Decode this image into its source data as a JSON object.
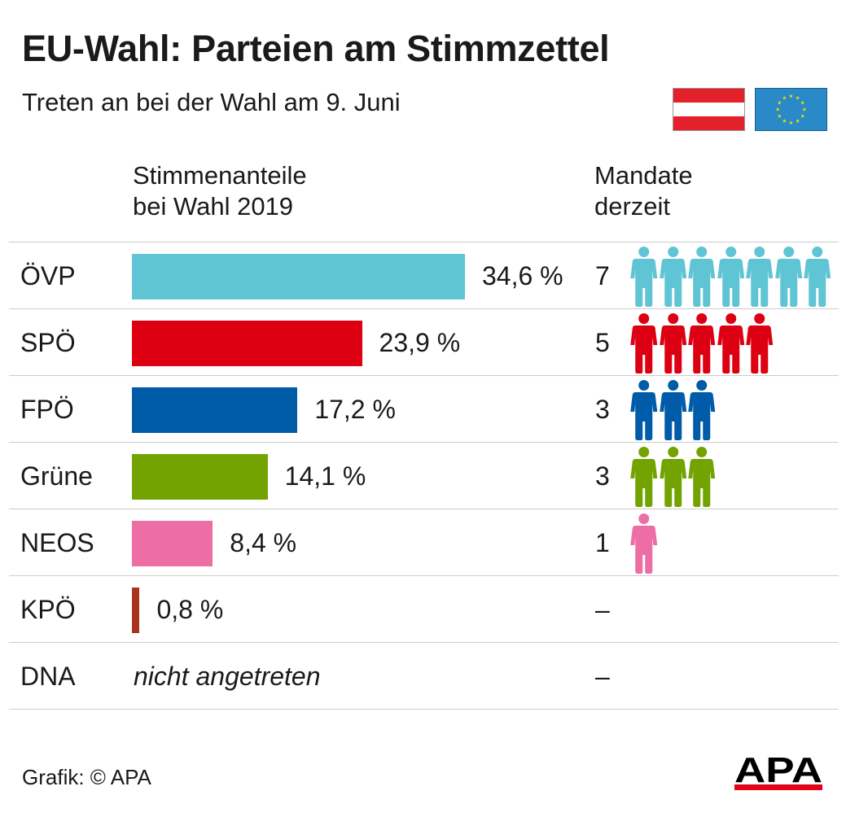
{
  "title": "EU-Wahl: Parteien am Stimmzettel",
  "subtitle": "Treten an bei der Wahl am 9. Juni",
  "headers": {
    "votes_line1": "Stimmenanteile",
    "votes_line2": "bei Wahl 2019",
    "seats_line1": "Mandate",
    "seats_line2": "derzeit"
  },
  "icons": {
    "flag_austria": "austria-flag-icon",
    "flag_eu": "eu-flag-icon",
    "person": "person-icon",
    "logo": "apa-logo"
  },
  "chart_data": {
    "type": "bar",
    "orientation": "horizontal",
    "categories": [
      "ÖVP",
      "SPÖ",
      "FPÖ",
      "Grüne",
      "NEOS",
      "KPÖ",
      "DNA"
    ],
    "series": [
      {
        "values": [
          34.6,
          23.9,
          17.2,
          14.1,
          8.4,
          0.8,
          null
        ]
      },
      {
        "values": [
          7,
          5,
          3,
          3,
          1,
          0,
          0
        ]
      }
    ],
    "rows": [
      {
        "party": "ÖVP",
        "value": 34.6,
        "label": "34,6 %",
        "seats": 7,
        "seats_label": "7",
        "color": "#5fc4d4"
      },
      {
        "party": "SPÖ",
        "value": 23.9,
        "label": "23,9 %",
        "seats": 5,
        "seats_label": "5",
        "color": "#dc0012"
      },
      {
        "party": "FPÖ",
        "value": 17.2,
        "label": "17,2 %",
        "seats": 3,
        "seats_label": "3",
        "color": "#005ba8"
      },
      {
        "party": "Grüne",
        "value": 14.1,
        "label": "14,1 %",
        "seats": 3,
        "seats_label": "3",
        "color": "#72a300"
      },
      {
        "party": "NEOS",
        "value": 8.4,
        "label": "8,4 %",
        "seats": 1,
        "seats_label": "1",
        "color": "#ec6ea4"
      },
      {
        "party": "KPÖ",
        "value": 0.8,
        "label": "0,8 %",
        "seats": 0,
        "seats_label": "–",
        "color": "#a8341e"
      },
      {
        "party": "DNA",
        "value": null,
        "label": "nicht angetreten",
        "seats": 0,
        "seats_label": "–",
        "color": "#000000"
      }
    ],
    "xlim": [
      0,
      34.6
    ],
    "grid": false,
    "legend": "none"
  },
  "footer": {
    "credit": "Grafik: © APA",
    "logo_text": "APA"
  },
  "colors": {
    "austria_red": "#e4212a",
    "eu_blue": "#2a8ac8",
    "eu_star": "#f5e000",
    "apa_red": "#e2001a",
    "apa_black": "#000000"
  }
}
